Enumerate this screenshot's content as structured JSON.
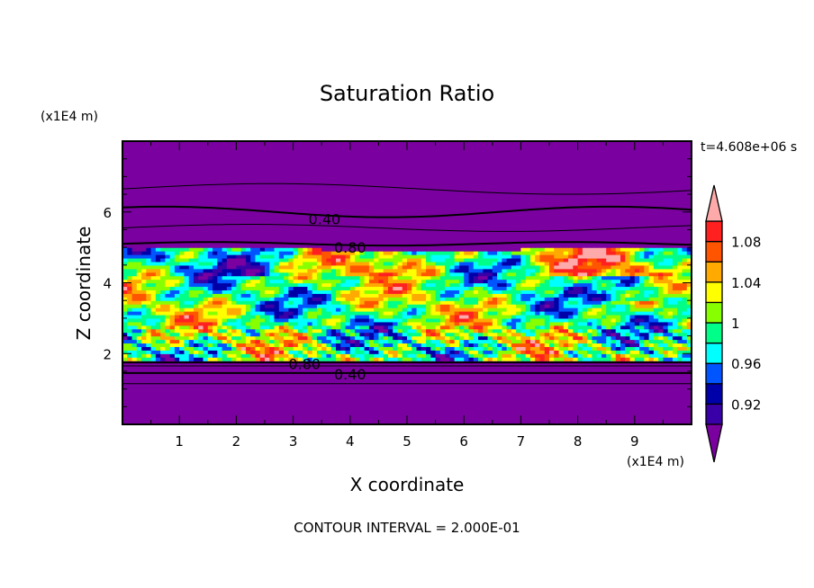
{
  "chart_data": {
    "type": "heatmap",
    "title": "Saturation Ratio",
    "xlabel": "X coordinate",
    "ylabel": "Z coordinate",
    "x_unit": "(x1E4 m)",
    "y_unit": "(x1E4 m)",
    "xlim": [
      0,
      10
    ],
    "ylim": [
      0,
      8
    ],
    "x_ticks": [
      "1",
      "2",
      "3",
      "4",
      "5",
      "6",
      "7",
      "8",
      "9"
    ],
    "y_ticks": [
      "2",
      "4",
      "6"
    ],
    "time_label": "t=4.608e+06 s",
    "footer": "CONTOUR INTERVAL = 2.000E-01",
    "colorbar": {
      "levels": [
        0.9,
        0.92,
        0.94,
        0.96,
        0.98,
        1.0,
        1.02,
        1.04,
        1.06,
        1.08,
        1.1
      ],
      "tick_labels": [
        "0.92",
        "0.96",
        "1",
        "1.04",
        "1.08"
      ],
      "colors": [
        "#7a00a0",
        "#3a00a8",
        "#0000a8",
        "#0055ff",
        "#00ffff",
        "#00ff88",
        "#88ff00",
        "#ffff00",
        "#ffaa00",
        "#ff5500",
        "#ff2020",
        "#ffaaaa"
      ],
      "extend": "both"
    },
    "contour_labels": [
      "0.40",
      "0.80",
      "0.80",
      "0.40"
    ],
    "grid": false
  }
}
